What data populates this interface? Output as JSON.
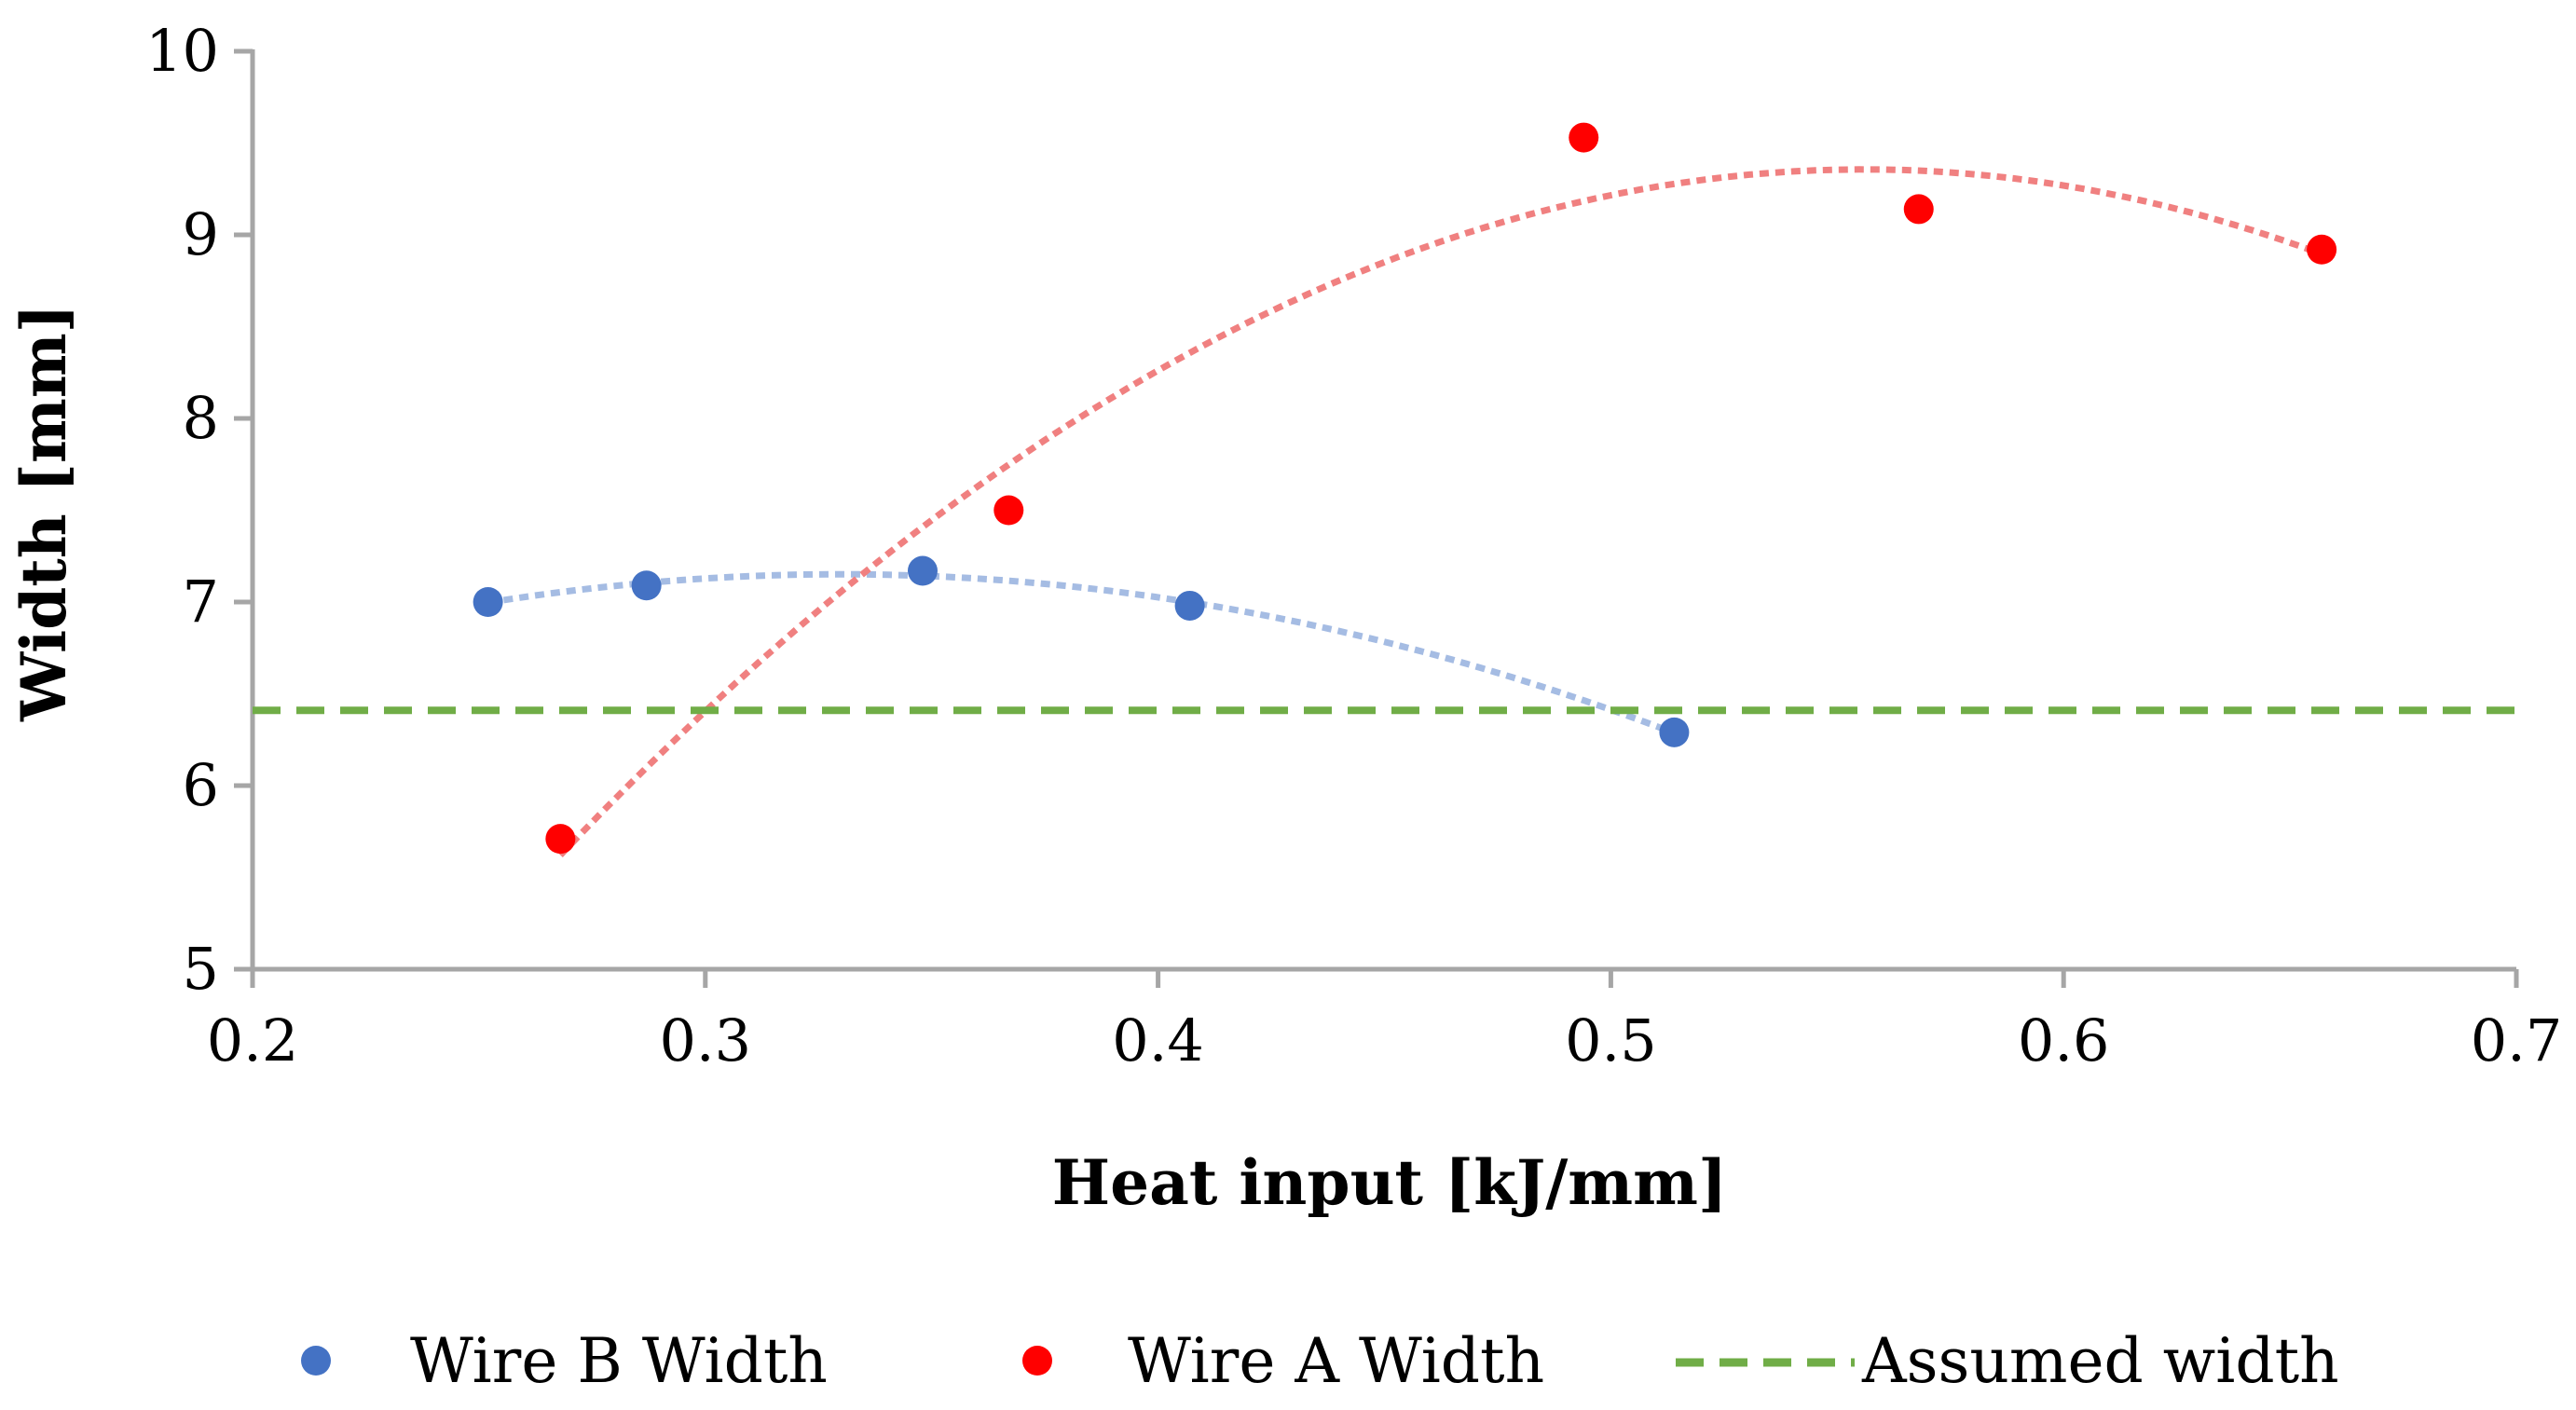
{
  "chart_data": {
    "type": "scatter",
    "title": "",
    "xlabel": "Heat input [kJ/mm]",
    "ylabel": "Width [mm]",
    "xlim": [
      0.2,
      0.7
    ],
    "ylim": [
      5,
      10
    ],
    "xticks": [
      "0.2",
      "0.3",
      "0.4",
      "0.5",
      "0.6",
      "0.7"
    ],
    "yticks": [
      "5",
      "6",
      "7",
      "8",
      "9",
      "10"
    ],
    "grid": false,
    "legend_position": "bottom",
    "series": [
      {
        "name": "Wire B Width",
        "color": "#4472C4",
        "trend_color": "#A5BCE3",
        "trendline": "polynomial-2",
        "x": [
          0.252,
          0.287,
          0.348,
          0.407,
          0.514
        ],
        "y": [
          7.0,
          7.09,
          7.17,
          6.98,
          6.29
        ]
      },
      {
        "name": "Wire A Width",
        "color": "#FF0000",
        "trend_color": "#F08080",
        "trendline": "polynomial-2",
        "x": [
          0.268,
          0.367,
          0.494,
          0.568,
          0.657
        ],
        "y": [
          5.71,
          7.5,
          9.53,
          9.14,
          8.92
        ]
      },
      {
        "name": "Assumed width",
        "color": "#70AD47",
        "style": "dashed-line",
        "x": [
          0.2,
          0.7
        ],
        "y": [
          6.41,
          6.41
        ]
      }
    ]
  }
}
